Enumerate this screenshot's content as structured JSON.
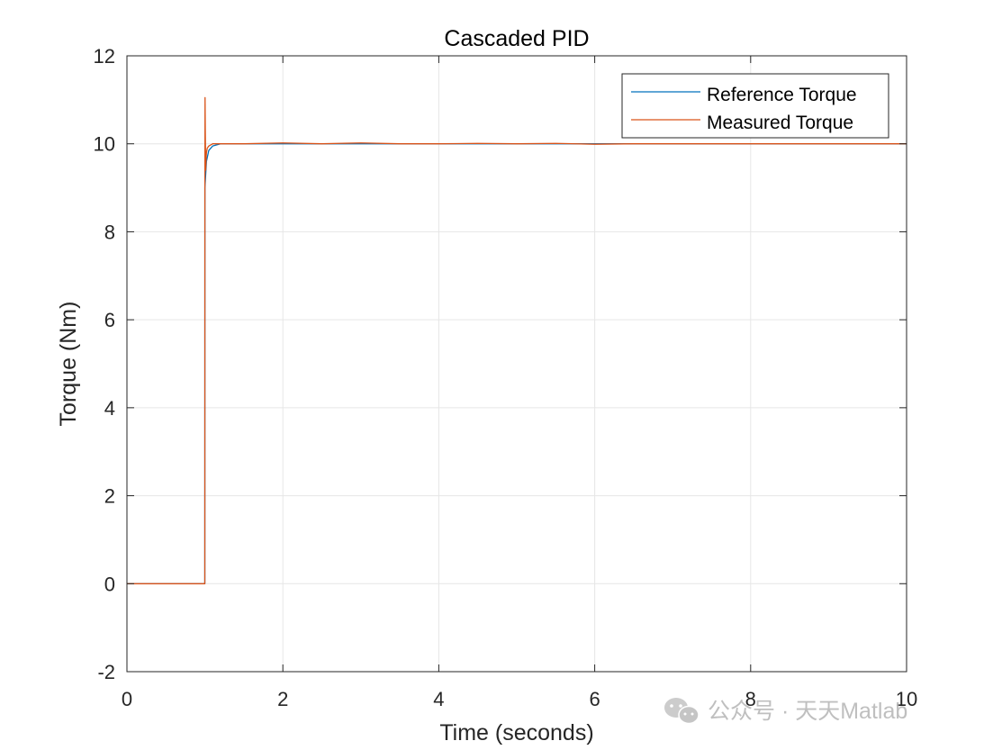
{
  "chart_data": {
    "type": "line",
    "title": "Cascaded PID",
    "xlabel": "Time (seconds)",
    "ylabel": "Torque (Nm)",
    "xlim": [
      0,
      10
    ],
    "ylim": [
      -2,
      12
    ],
    "xticks": [
      0,
      2,
      4,
      6,
      8,
      10
    ],
    "yticks": [
      -2,
      0,
      2,
      4,
      6,
      8,
      10,
      12
    ],
    "xtick_labels": [
      "0",
      "2",
      "4",
      "6",
      "8",
      "10"
    ],
    "ytick_labels": [
      "-2",
      "0",
      "2",
      "4",
      "6",
      "8",
      "10",
      "12"
    ],
    "grid": true,
    "legend_position": "top-right",
    "series": [
      {
        "name": "Reference Torque",
        "color": "#0072BD",
        "x": [
          0,
          0.999,
          1.0,
          1.02,
          1.05,
          1.1,
          1.2,
          1.5,
          2,
          3,
          4,
          5,
          6,
          7,
          8,
          9,
          10
        ],
        "y": [
          0,
          0,
          9.0,
          9.6,
          9.85,
          9.95,
          10.0,
          10.0,
          10.0,
          10.0,
          10.0,
          10.0,
          10.0,
          10.0,
          10.0,
          10.0,
          10.0
        ]
      },
      {
        "name": "Measured Torque",
        "color": "#D95319",
        "x": [
          0,
          0.5,
          0.999,
          1.0,
          1.002,
          1.005,
          1.01,
          1.015,
          1.02,
          1.03,
          1.05,
          1.08,
          1.1,
          1.2,
          1.5,
          2,
          2.5,
          3,
          3.5,
          4,
          4.5,
          5,
          5.5,
          6,
          6.5,
          7,
          7.5,
          8,
          8.5,
          9,
          9.5,
          10
        ],
        "y": [
          0,
          0,
          0,
          9.2,
          11.05,
          10.3,
          9.4,
          9.65,
          9.8,
          9.9,
          9.95,
          9.98,
          10.0,
          10.0,
          10.0,
          10.02,
          10.0,
          10.02,
          10.0,
          10.0,
          10.01,
          10.0,
          10.01,
          9.99,
          10.0,
          10.0,
          10.0,
          10.0,
          10.0,
          10.0,
          10.0,
          10.0
        ]
      }
    ]
  },
  "watermark": {
    "text": "公众号 · 天天Matlab",
    "icon": "wechat-icon"
  }
}
